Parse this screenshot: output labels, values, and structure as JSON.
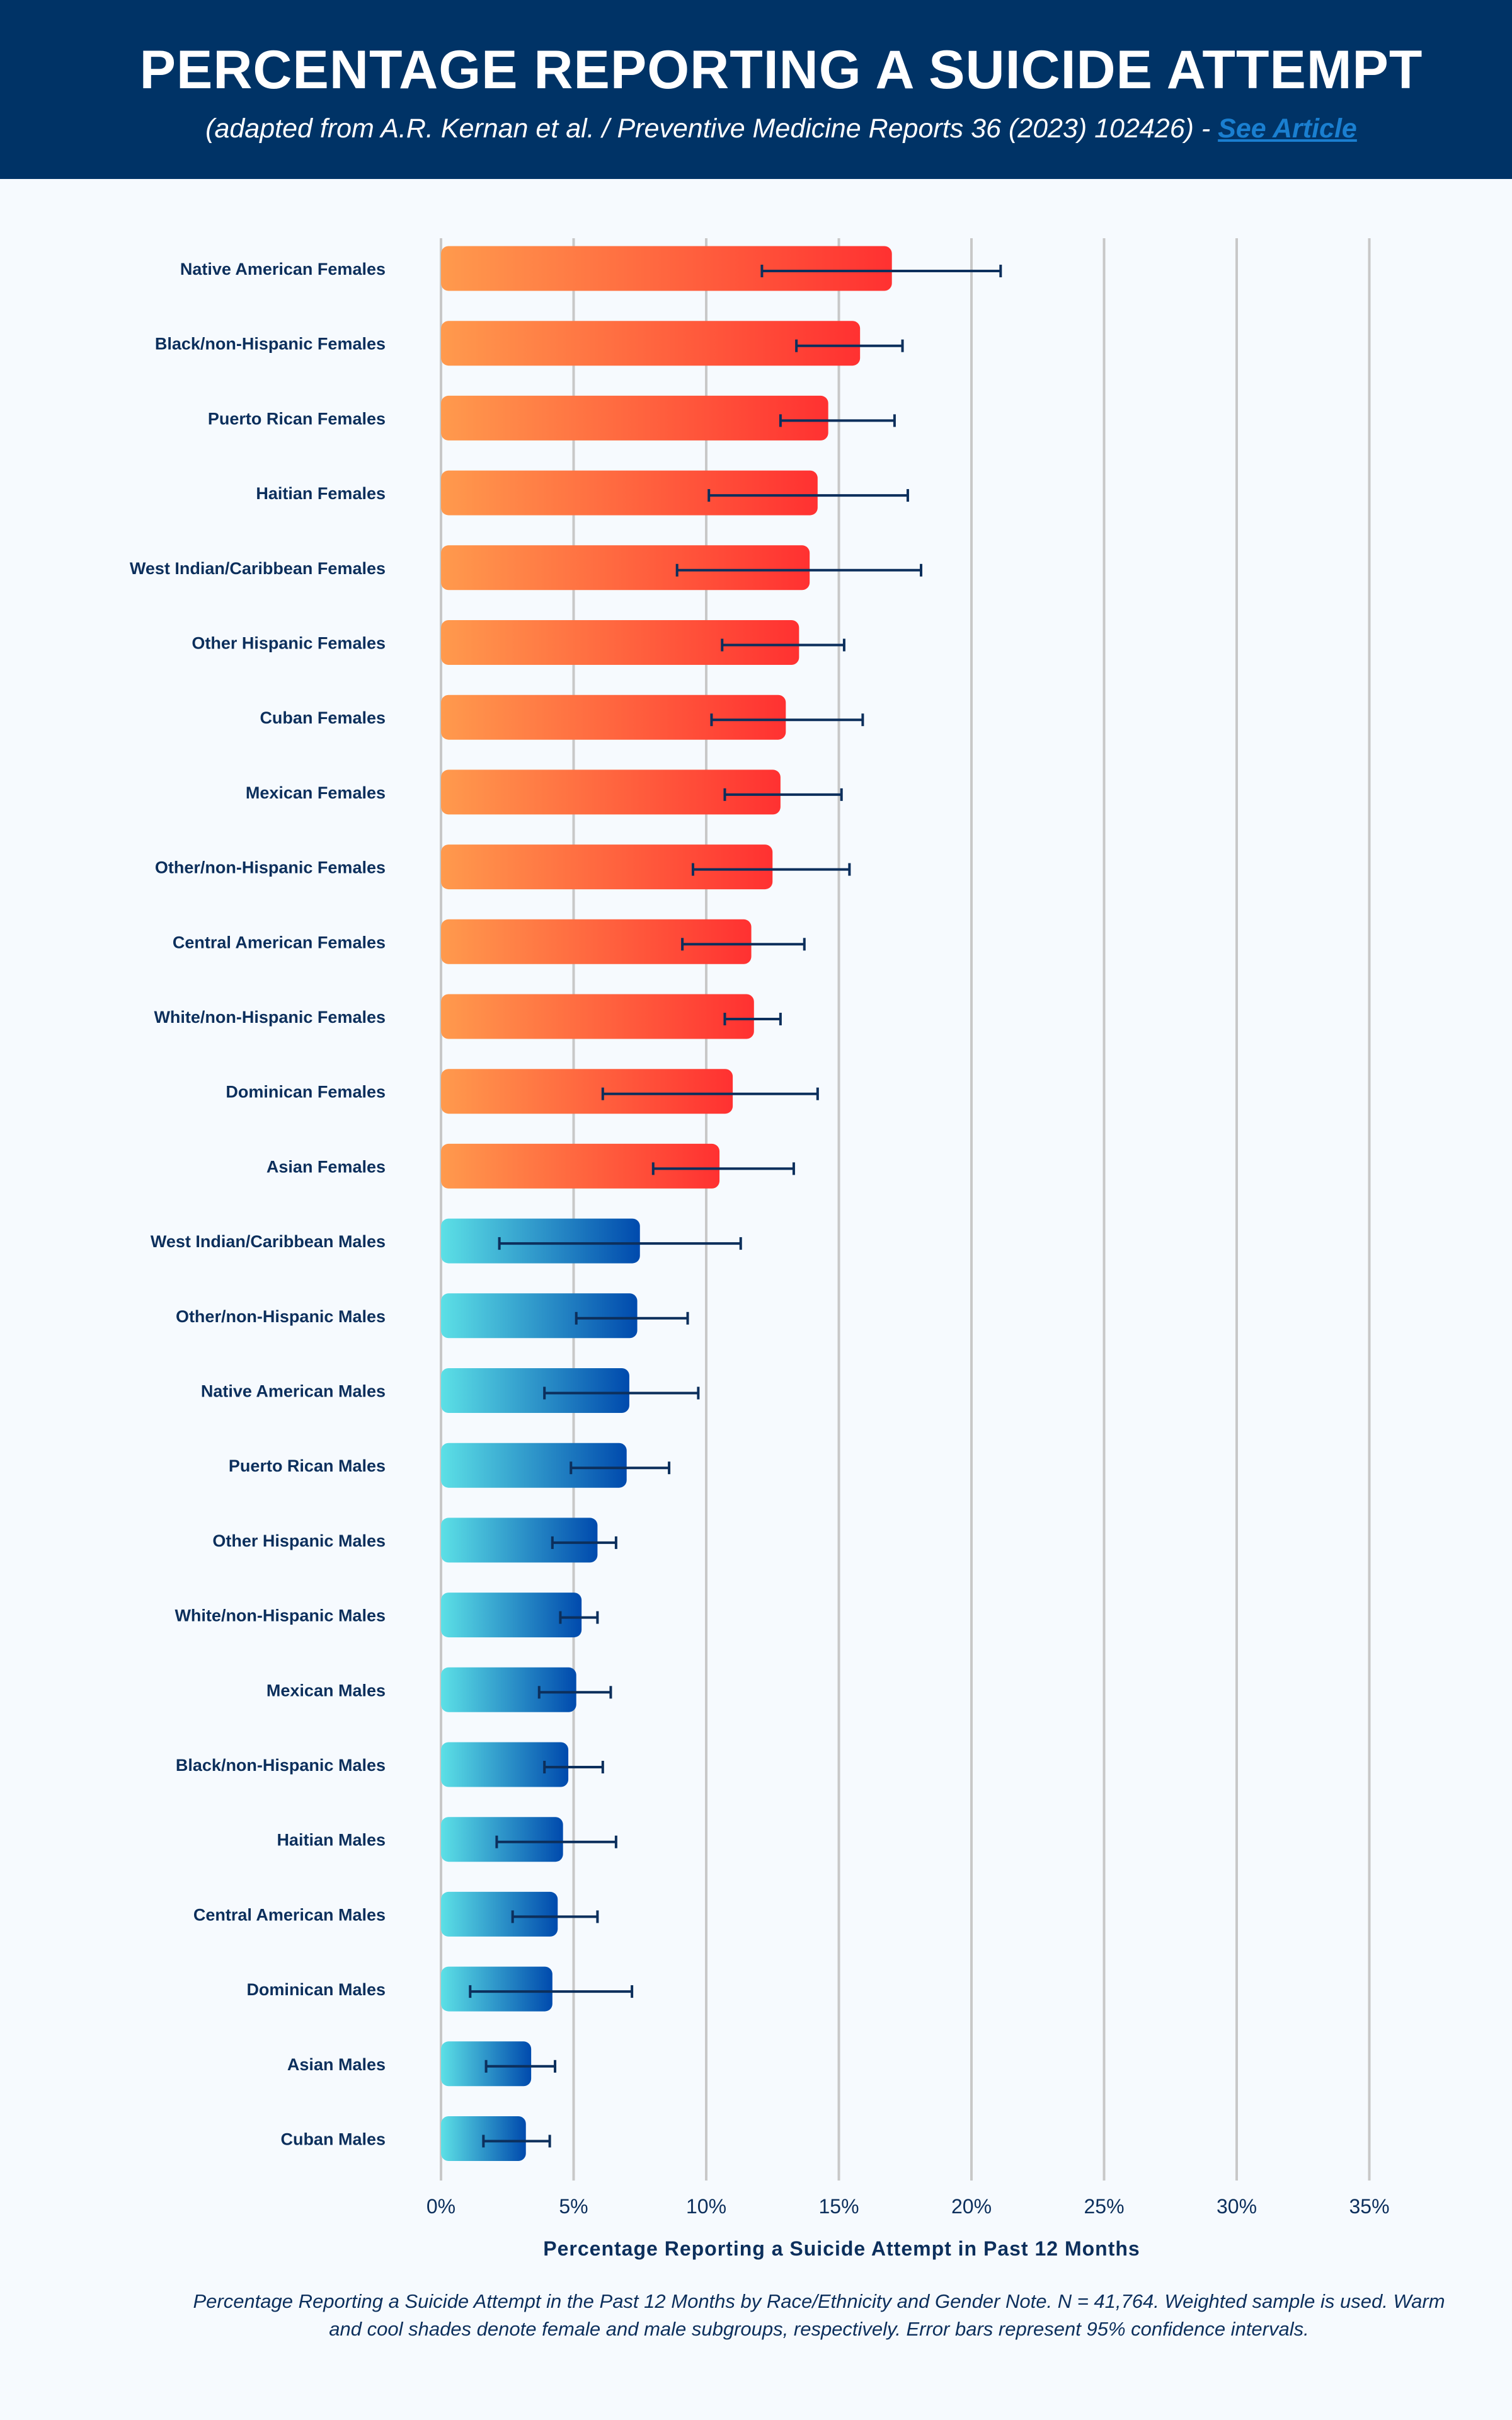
{
  "header": {
    "title": "PERCENTAGE REPORTING A SUICIDE ATTEMPT",
    "subtitle": "(adapted from A.R. Kernan et al. / Preventive Medicine Reports 36 (2023) 102426) - ",
    "link_label": "See Article"
  },
  "colors": {
    "header_bg": "#003366",
    "female_gradient": [
      "#ff9a4d",
      "#ff3131"
    ],
    "male_gradient": [
      "#5ce0e6",
      "#004aad"
    ],
    "error_bar": "#0c2f5c",
    "link": "#1a7fd0"
  },
  "chart_data": {
    "type": "bar",
    "orientation": "horizontal",
    "xlabel": "Percentage Reporting a Suicide Attempt in Past 12 Months",
    "xlim": [
      0,
      35
    ],
    "xticks": [
      "0%",
      "5%",
      "10%",
      "15%",
      "20%",
      "25%",
      "30%",
      "35%"
    ],
    "grid": true,
    "categories": [
      "Native American Females",
      "Black/non-Hispanic Females",
      "Puerto Rican Females",
      "Haitian Females",
      "West Indian/Caribbean Females",
      "Other Hispanic Females",
      "Cuban Females",
      "Mexican Females",
      "Other/non-Hispanic Females",
      "Central American Females",
      "White/non-Hispanic Females",
      "Dominican Females",
      "Asian Females",
      "West Indian/Caribbean Males",
      "Other/non-Hispanic Males",
      "Native American Males",
      "Puerto Rican Males",
      "Other Hispanic Males",
      "White/non-Hispanic Males",
      "Mexican Males",
      "Black/non-Hispanic Males",
      "Haitian Males",
      "Central American Males",
      "Dominican Males",
      "Asian Males",
      "Cuban Males"
    ],
    "values": [
      17.0,
      15.8,
      14.6,
      14.2,
      13.9,
      13.5,
      13.0,
      12.8,
      12.5,
      11.7,
      11.8,
      11.0,
      10.5,
      7.5,
      7.4,
      7.1,
      7.0,
      5.9,
      5.3,
      5.1,
      4.8,
      4.6,
      4.4,
      4.2,
      3.4,
      3.2
    ],
    "ci_lower": [
      12.1,
      13.4,
      12.8,
      10.1,
      8.9,
      10.6,
      10.2,
      10.7,
      9.5,
      9.1,
      10.7,
      6.1,
      8.0,
      2.2,
      5.1,
      3.9,
      4.9,
      4.2,
      4.5,
      3.7,
      3.9,
      2.1,
      2.7,
      1.1,
      1.7,
      1.6
    ],
    "ci_upper": [
      21.1,
      17.4,
      17.1,
      17.6,
      18.1,
      15.2,
      15.9,
      15.1,
      15.4,
      13.7,
      12.8,
      14.2,
      13.3,
      11.3,
      9.3,
      9.7,
      8.6,
      6.6,
      5.9,
      6.4,
      6.1,
      6.6,
      5.9,
      7.2,
      4.3,
      4.1
    ],
    "group": [
      "female",
      "female",
      "female",
      "female",
      "female",
      "female",
      "female",
      "female",
      "female",
      "female",
      "female",
      "female",
      "female",
      "male",
      "male",
      "male",
      "male",
      "male",
      "male",
      "male",
      "male",
      "male",
      "male",
      "male",
      "male",
      "male"
    ]
  },
  "note": "Percentage Reporting a Suicide Attempt in the Past 12 Months by Race/Ethnicity and Gender Note. N = 41,764. Weighted sample is used. Warm and cool shades denote female and male subgroups, respectively. Error bars represent 95% confidence intervals."
}
